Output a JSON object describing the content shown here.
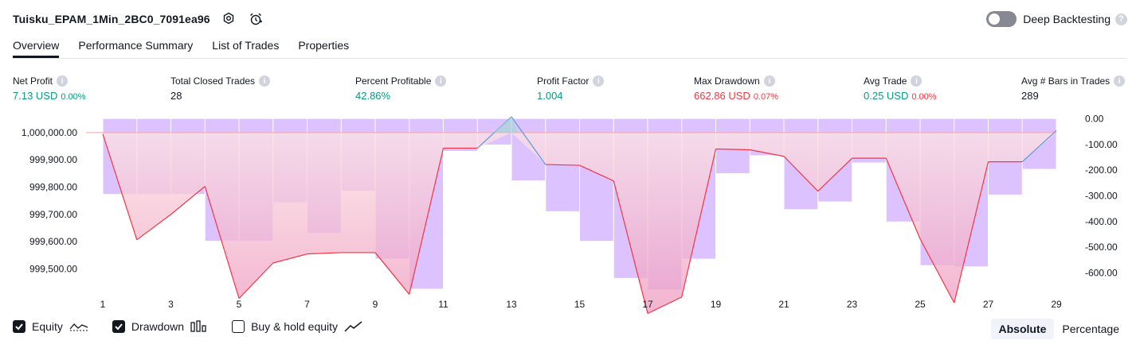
{
  "header": {
    "strategy_name": "Tuisku_EPAM_1Min_2BC0_7091ea96",
    "deep_backtesting_label": "Deep Backtesting",
    "deep_backtesting_enabled": false
  },
  "tabs": [
    {
      "label": "Overview",
      "active": true
    },
    {
      "label": "Performance Summary",
      "active": false
    },
    {
      "label": "List of Trades",
      "active": false
    },
    {
      "label": "Properties",
      "active": false
    }
  ],
  "metrics": {
    "net_profit": {
      "label": "Net Profit",
      "value": "7.13 USD",
      "pct": "0.00%"
    },
    "total_closed_trades": {
      "label": "Total Closed Trades",
      "value": "28"
    },
    "percent_profitable": {
      "label": "Percent Profitable",
      "value": "42.86%"
    },
    "profit_factor": {
      "label": "Profit Factor",
      "value": "1.004"
    },
    "max_drawdown": {
      "label": "Max Drawdown",
      "value": "662.86 USD",
      "pct": "0.07%"
    },
    "avg_trade": {
      "label": "Avg Trade",
      "value": "0.25 USD",
      "pct": "0.00%"
    },
    "avg_bars": {
      "label": "Avg # Bars in Trades",
      "value": "289"
    }
  },
  "legend": {
    "equity": {
      "label": "Equity",
      "checked": true
    },
    "drawdown": {
      "label": "Drawdown",
      "checked": true
    },
    "buy_hold": {
      "label": "Buy & hold equity",
      "checked": false
    }
  },
  "modes": {
    "absolute": "Absolute",
    "percentage": "Percentage",
    "active": "absolute"
  },
  "colors": {
    "profit": "#089981",
    "loss": "#f23645",
    "equity_line": "#f23645",
    "equity_line_positive": "#5b9bd5",
    "drawdown_bar": "#d6b8ff",
    "equity_fill_top": "#fde3e3",
    "equity_fill_bottom": "#ee9ac0"
  },
  "chart_data": {
    "type": "line",
    "x_ticks": [
      "1",
      "3",
      "5",
      "7",
      "9",
      "11",
      "13",
      "15",
      "17",
      "19",
      "21",
      "23",
      "25",
      "27",
      "29"
    ],
    "left_ticks": [
      "1,000,000.00",
      "999,900.00",
      "999,800.00",
      "999,700.00",
      "999,600.00",
      "999,500.00"
    ],
    "right_ticks": [
      "0.00",
      "-100.00",
      "-200.00",
      "-300.00",
      "-400.00",
      "-500.00",
      "-600.00"
    ],
    "left_ylim": [
      999420,
      1000055
    ],
    "right_ylim": [
      -670,
      5
    ],
    "initial_capital": 1000000,
    "series": [
      {
        "name": "Equity",
        "axis": "left",
        "x": [
          1,
          2,
          3,
          4,
          5,
          6,
          7,
          8,
          9,
          10,
          11,
          12,
          13,
          14,
          15,
          16,
          17,
          18,
          19,
          20,
          21,
          22,
          23,
          24,
          25,
          26,
          27,
          28,
          29
        ],
        "values": [
          999995,
          999607,
          999700,
          999803,
          999392,
          999522,
          999555,
          999560,
          999560,
          999407,
          999943,
          999943,
          1000058,
          999883,
          999880,
          999823,
          999337,
          999397,
          999940,
          999937,
          999913,
          999785,
          999906,
          999906,
          999610,
          999376,
          999893,
          999893,
          1000007
        ]
      },
      {
        "name": "Drawdown",
        "axis": "right",
        "type": "bar",
        "x": [
          2,
          3,
          4,
          5,
          6,
          7,
          8,
          9,
          10,
          11,
          12,
          13,
          14,
          15,
          16,
          17,
          18,
          19,
          20,
          21,
          22,
          23,
          24,
          25,
          26,
          27,
          28,
          29
        ],
        "values": [
          -293,
          -293,
          -293,
          -475,
          -475,
          -325,
          -445,
          -280,
          -545,
          -662,
          -125,
          -100,
          -240,
          -360,
          -475,
          -620,
          -665,
          -545,
          -212,
          -142,
          -352,
          -322,
          -170,
          -400,
          -570,
          -575,
          -295,
          -195
        ]
      }
    ]
  }
}
